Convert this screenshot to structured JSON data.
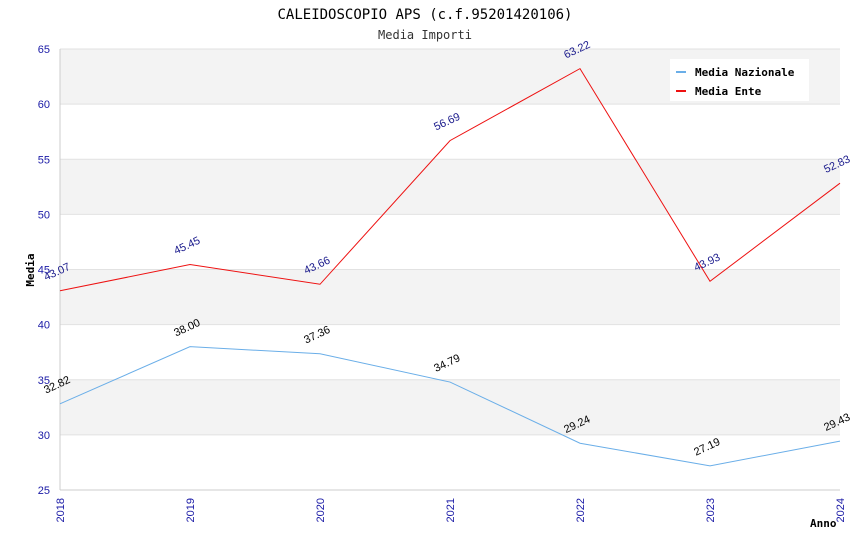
{
  "chart_data": {
    "type": "line",
    "title": "CALEIDOSCOPIO APS (c.f.95201420106)",
    "subtitle": "Media Importi",
    "xlabel": "Anno",
    "ylabel": "Media",
    "categories": [
      "2018",
      "2019",
      "2020",
      "2021",
      "2022",
      "2023",
      "2024"
    ],
    "ylim": [
      25,
      65
    ],
    "yticks": [
      "25",
      "30",
      "35",
      "40",
      "45",
      "50",
      "55",
      "60",
      "65"
    ],
    "grid": true,
    "legend_position": "top-right",
    "series": [
      {
        "name": "Media Nazionale",
        "color": "#6aaee8",
        "label_color": "#000000",
        "values": [
          32.82,
          38.0,
          37.36,
          34.79,
          29.24,
          27.19,
          29.43
        ],
        "labels": [
          "32.82",
          "38.00",
          "37.36",
          "34.79",
          "29.24",
          "27.19",
          "29.43"
        ]
      },
      {
        "name": "Media Ente",
        "color": "#ee1111",
        "label_color": "#1a1a8c",
        "values": [
          43.07,
          45.45,
          43.66,
          56.69,
          63.22,
          43.93,
          52.83
        ],
        "labels": [
          "43.07",
          "45.45",
          "43.66",
          "56.69",
          "63.22",
          "43.93",
          "52.83"
        ]
      }
    ]
  }
}
